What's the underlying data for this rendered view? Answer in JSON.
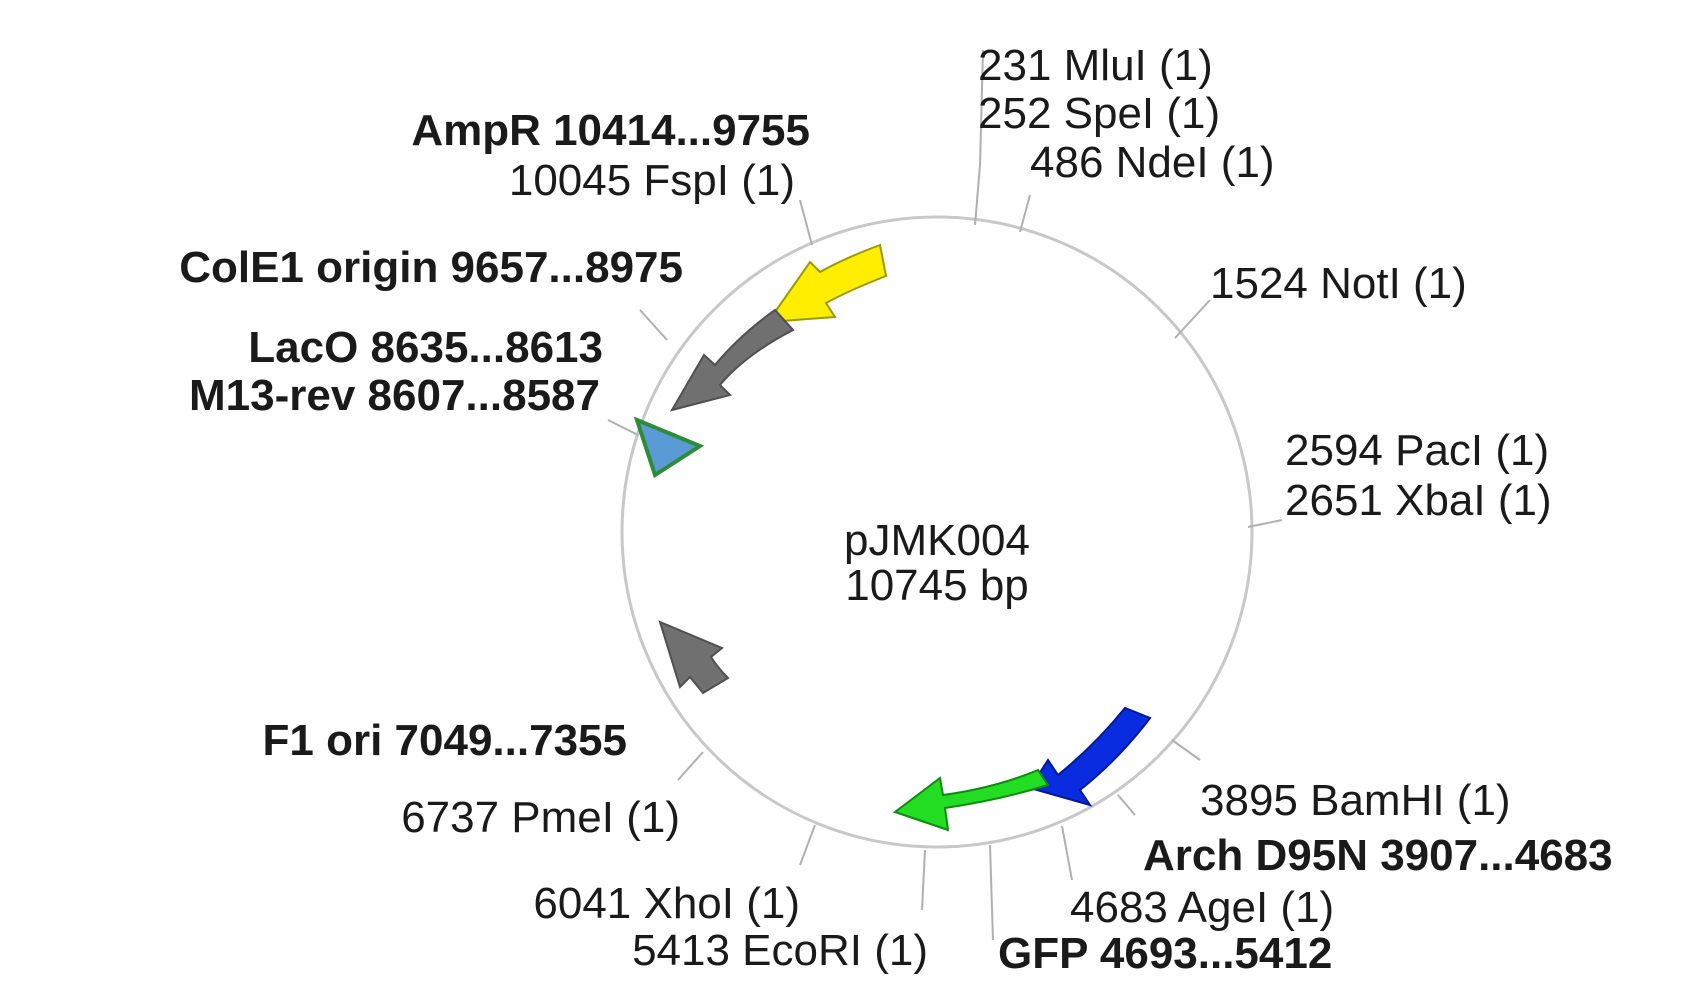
{
  "plasmid": {
    "name": "pJMK004",
    "size": "10745 bp"
  },
  "features": [
    {
      "label": "AmpR 10414...9755",
      "color": "#ffee00"
    },
    {
      "label": "ColE1 origin 9657...8975",
      "color": "#707070"
    },
    {
      "label": "LacO 8635...8613",
      "color": "#5b9bd5"
    },
    {
      "label": "M13-rev 8607...8587",
      "color": "#2e8b3a"
    },
    {
      "label": "F1 ori 7049...7355",
      "color": "#707070"
    },
    {
      "label": "Arch D95N 3907...4683",
      "color": "#0a2ce0"
    },
    {
      "label": "GFP 4693...5412",
      "color": "#22dd22"
    }
  ],
  "sites": [
    {
      "label": "231 MluI (1)"
    },
    {
      "label": "252 SpeI (1)"
    },
    {
      "label": "486 NdeI (1)"
    },
    {
      "label": "1524 NotI (1)"
    },
    {
      "label": "2594 PacI (1)"
    },
    {
      "label": "2651 XbaI (1)"
    },
    {
      "label": "3895 BamHI (1)"
    },
    {
      "label": "4683 AgeI (1)"
    },
    {
      "label": "5413 EcoRI (1)"
    },
    {
      "label": "6041 XhoI (1)"
    },
    {
      "label": "6737 PmeI (1)"
    },
    {
      "label": "10045 FspI (1)"
    }
  ]
}
